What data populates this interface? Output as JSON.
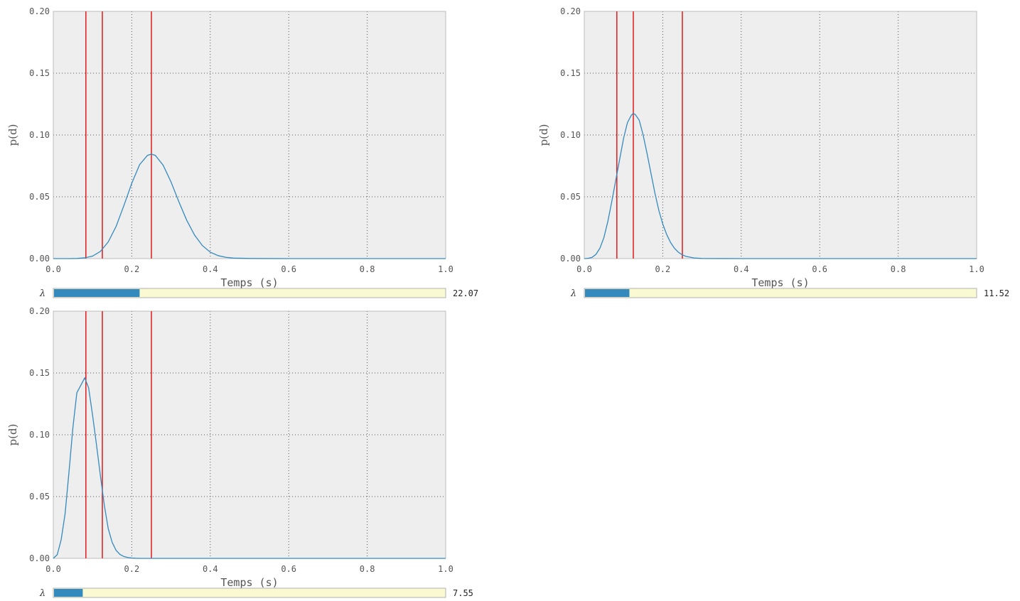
{
  "chart_data": [
    {
      "type": "line",
      "xlabel": "Temps (s)",
      "ylabel": "p(d)",
      "xlim": [
        0.0,
        1.0
      ],
      "ylim": [
        0.0,
        0.2
      ],
      "xticks": [
        "0.0",
        "0.2",
        "0.4",
        "0.6",
        "0.8",
        "1.0"
      ],
      "yticks": [
        "0.00",
        "0.05",
        "0.10",
        "0.15",
        "0.20"
      ],
      "grid": true,
      "vlines": [
        0.083,
        0.125,
        0.25
      ],
      "series": [
        {
          "x": [
            0.0,
            0.02,
            0.04,
            0.06,
            0.08,
            0.1,
            0.12,
            0.14,
            0.16,
            0.18,
            0.2,
            0.22,
            0.24,
            0.25,
            0.26,
            0.28,
            0.3,
            0.32,
            0.34,
            0.36,
            0.38,
            0.4,
            0.42,
            0.44,
            0.46,
            0.5,
            0.6,
            0.8,
            1.0
          ],
          "y": [
            0.0,
            0.0,
            0.0,
            0.0001,
            0.0006,
            0.002,
            0.0058,
            0.0135,
            0.026,
            0.043,
            0.061,
            0.076,
            0.0835,
            0.0845,
            0.0835,
            0.0755,
            0.062,
            0.046,
            0.031,
            0.019,
            0.0105,
            0.0052,
            0.0024,
            0.001,
            0.0004,
            0.0001,
            0.0,
            0.0,
            0.0
          ],
          "color": "#348ABD"
        }
      ],
      "slider": {
        "label": "λ",
        "value": "22.07",
        "fraction": 0.22
      }
    },
    {
      "type": "line",
      "xlabel": "Temps (s)",
      "ylabel": "p(d)",
      "xlim": [
        0.0,
        1.0
      ],
      "ylim": [
        0.0,
        0.2
      ],
      "xticks": [
        "0.0",
        "0.2",
        "0.4",
        "0.6",
        "0.8",
        "1.0"
      ],
      "yticks": [
        "0.00",
        "0.05",
        "0.10",
        "0.15",
        "0.20"
      ],
      "grid": true,
      "vlines": [
        0.083,
        0.125,
        0.25
      ],
      "series": [
        {
          "x": [
            0.0,
            0.01,
            0.02,
            0.03,
            0.04,
            0.05,
            0.06,
            0.07,
            0.08,
            0.09,
            0.1,
            0.11,
            0.12,
            0.125,
            0.13,
            0.14,
            0.15,
            0.16,
            0.17,
            0.18,
            0.19,
            0.2,
            0.21,
            0.22,
            0.23,
            0.24,
            0.25,
            0.26,
            0.28,
            0.3,
            0.4,
            0.6,
            0.8,
            1.0
          ],
          "y": [
            0.0,
            0.0002,
            0.001,
            0.0035,
            0.0085,
            0.017,
            0.03,
            0.046,
            0.063,
            0.08,
            0.097,
            0.11,
            0.116,
            0.1175,
            0.1165,
            0.112,
            0.1,
            0.085,
            0.069,
            0.053,
            0.039,
            0.028,
            0.0195,
            0.013,
            0.0083,
            0.0051,
            0.003,
            0.0017,
            0.0005,
            0.0001,
            0.0,
            0.0,
            0.0,
            0.0
          ],
          "color": "#348ABD"
        }
      ],
      "slider": {
        "label": "λ",
        "value": "11.52",
        "fraction": 0.115
      }
    },
    {
      "type": "line",
      "xlabel": "Temps (s)",
      "ylabel": "p(d)",
      "xlim": [
        0.0,
        1.0
      ],
      "ylim": [
        0.0,
        0.2
      ],
      "xticks": [
        "0.0",
        "0.2",
        "0.4",
        "0.6",
        "0.8",
        "1.0"
      ],
      "yticks": [
        "0.00",
        "0.05",
        "0.10",
        "0.15",
        "0.20"
      ],
      "grid": true,
      "vlines": [
        0.083,
        0.125,
        0.25
      ],
      "series": [
        {
          "x": [
            0.0,
            0.01,
            0.02,
            0.03,
            0.04,
            0.05,
            0.06,
            0.07,
            0.08,
            0.09,
            0.1,
            0.11,
            0.12,
            0.13,
            0.14,
            0.15,
            0.16,
            0.17,
            0.18,
            0.19,
            0.2,
            0.21,
            0.22,
            0.24,
            0.26,
            0.3,
            0.4,
            0.6,
            0.8,
            1.0
          ],
          "y": [
            0.0,
            0.003,
            0.015,
            0.036,
            0.07,
            0.106,
            0.134,
            0.14,
            0.146,
            0.138,
            0.116,
            0.092,
            0.067,
            0.043,
            0.024,
            0.013,
            0.0065,
            0.0032,
            0.0015,
            0.0007,
            0.0003,
            0.0001,
            0.0,
            0.0,
            0.0,
            0.0,
            0.0,
            0.0,
            0.0,
            0.0
          ],
          "color": "#348ABD"
        }
      ],
      "slider": {
        "label": "λ",
        "value": "7.55",
        "fraction": 0.075
      }
    }
  ],
  "colors": {
    "axes_bg": "#EEEEEE",
    "grid": "#555555",
    "line": "#348ABD",
    "vline": "#E41A1C",
    "slider_track": "#FAFAD2",
    "slider_fill": "#348ABD"
  }
}
